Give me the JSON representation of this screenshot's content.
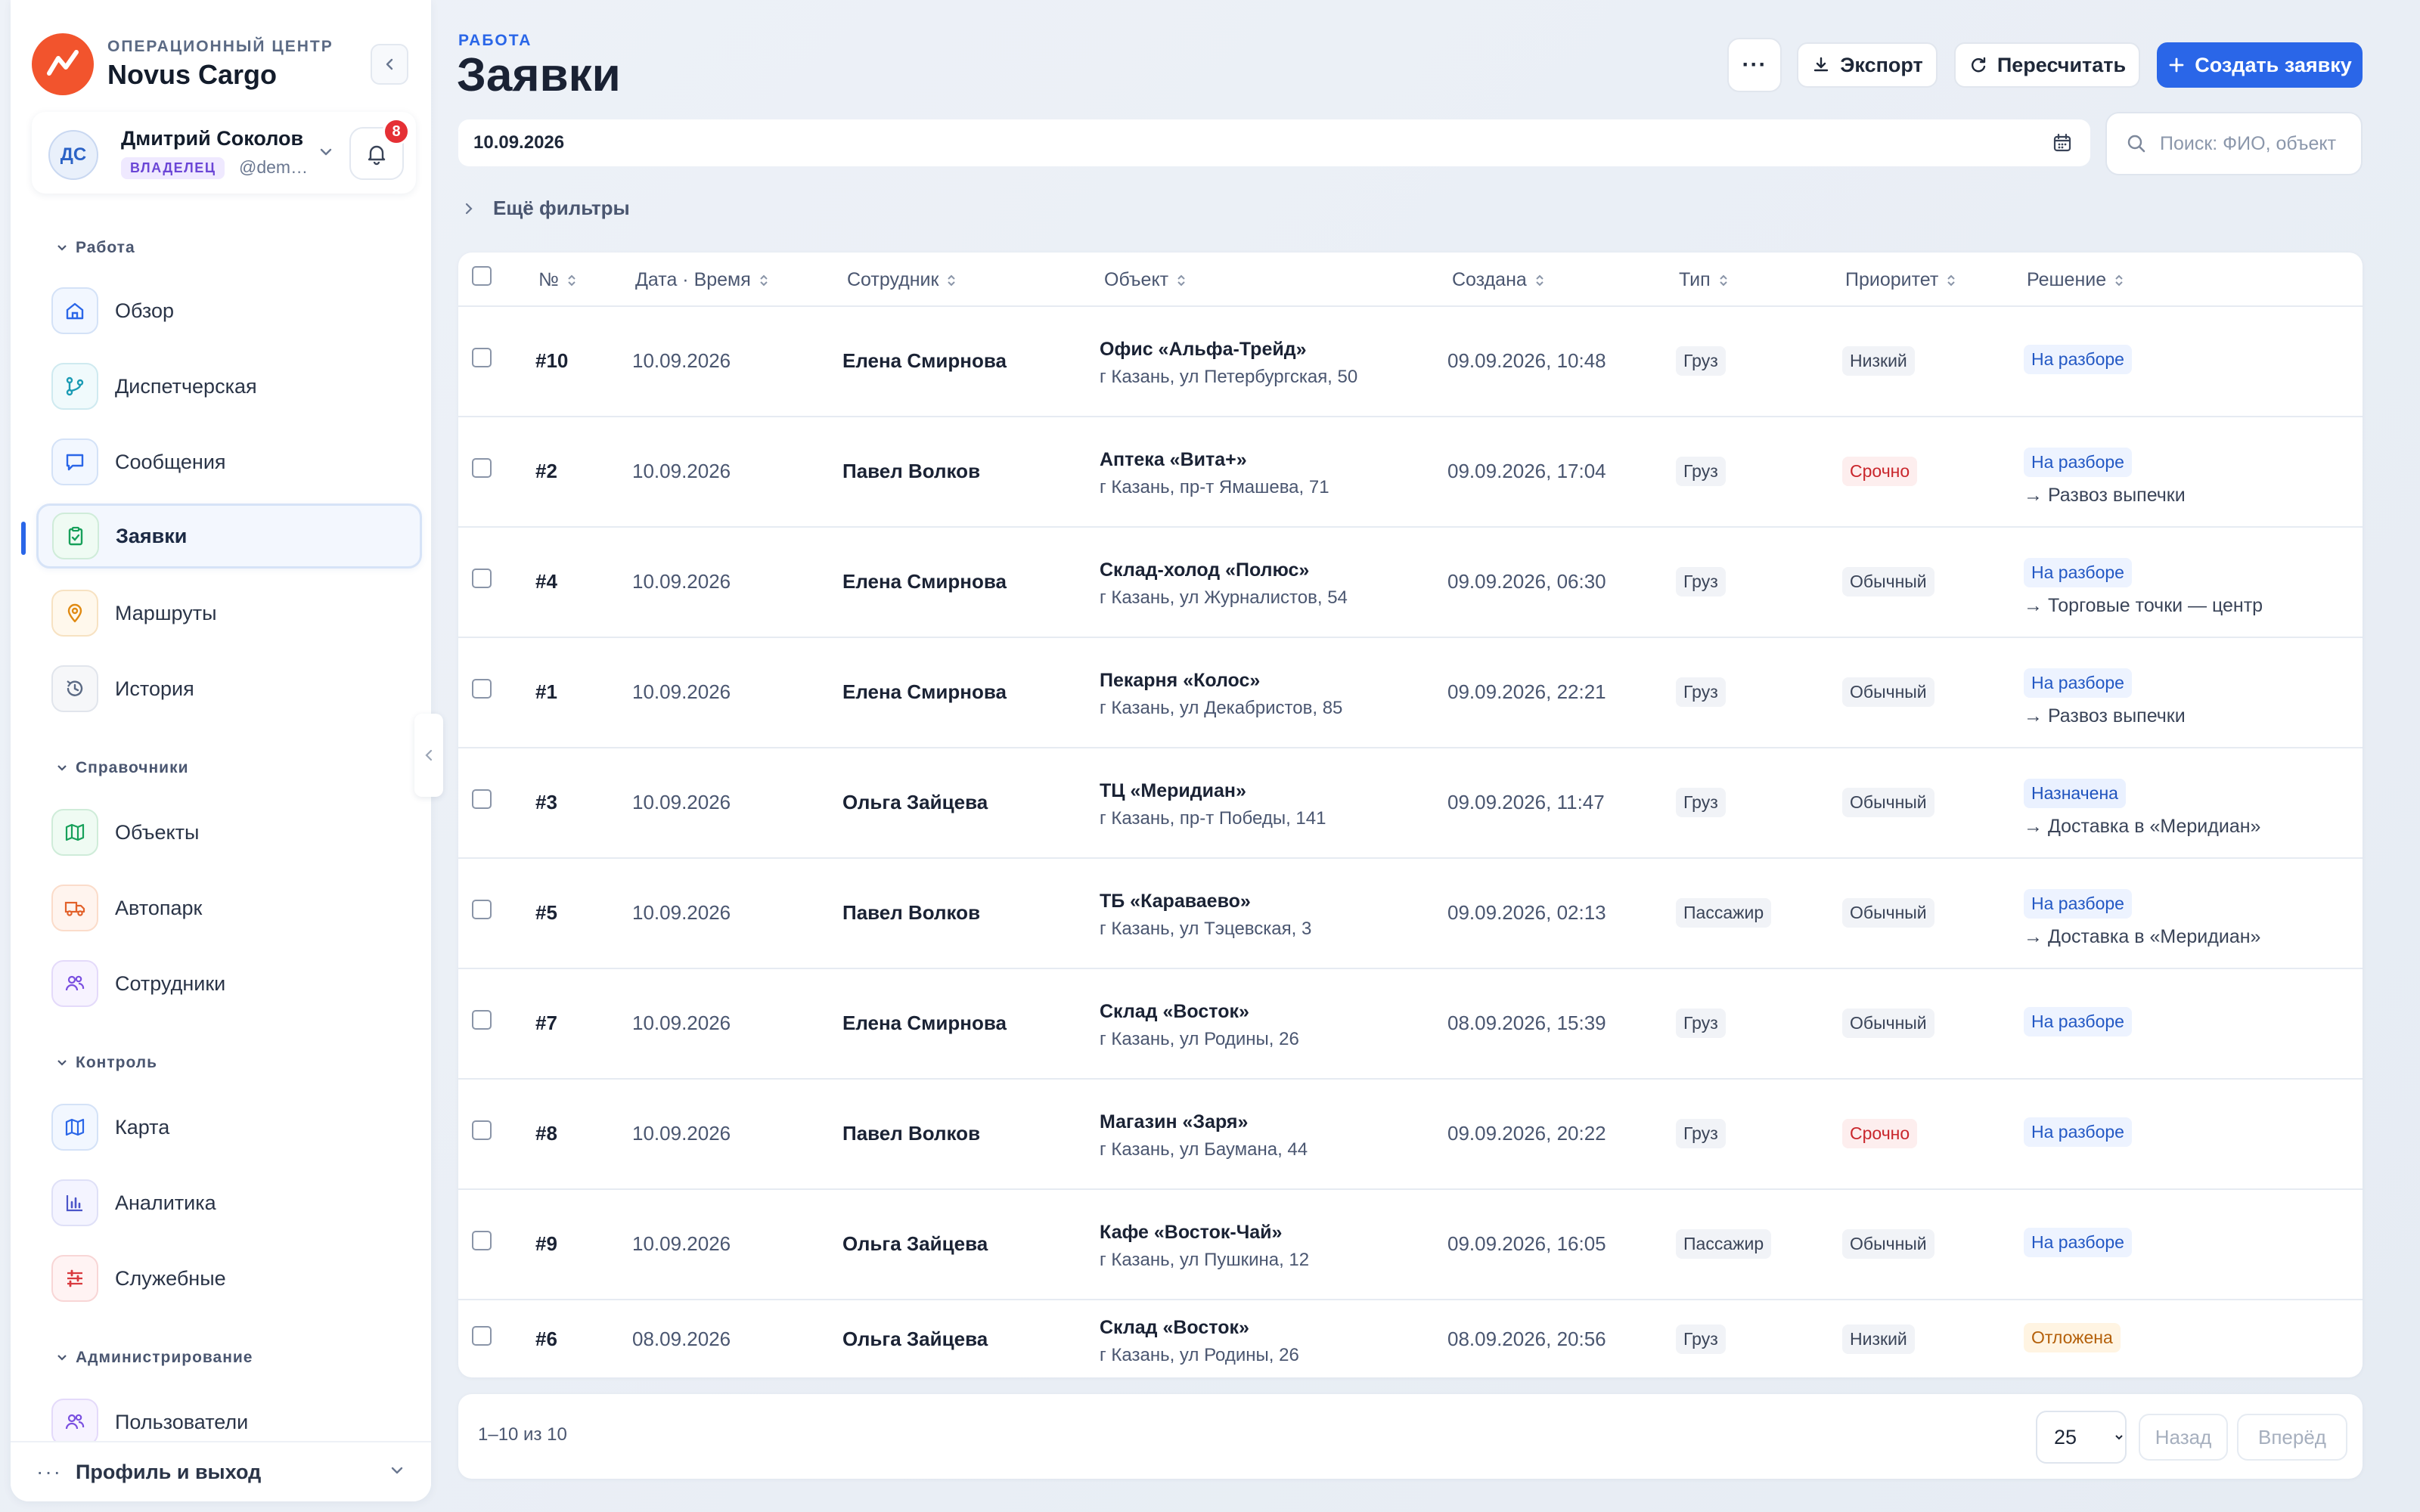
{
  "brand": {
    "subtitle": "ОПЕРАЦИОННЫЙ ЦЕНТР",
    "name": "Novus Cargo"
  },
  "user": {
    "initials": "ДС",
    "name": "Дмитрий Соколов",
    "role": "ВЛАДЕЛЕЦ",
    "handle": "@dem…",
    "notifications": "8"
  },
  "nav": {
    "sections": [
      {
        "title": "Работа",
        "items": [
          {
            "label": "Обзор",
            "icon": "home-icon"
          },
          {
            "label": "Диспетчерская",
            "icon": "branch-icon"
          },
          {
            "label": "Сообщения",
            "icon": "chat-icon"
          },
          {
            "label": "Заявки",
            "icon": "clipboard-icon"
          },
          {
            "label": "Маршруты",
            "icon": "pin-icon"
          },
          {
            "label": "История",
            "icon": "history-icon"
          }
        ]
      },
      {
        "title": "Справочники",
        "items": [
          {
            "label": "Объекты",
            "icon": "map-icon"
          },
          {
            "label": "Автопарк",
            "icon": "truck-icon"
          },
          {
            "label": "Сотрудники",
            "icon": "users-icon"
          }
        ]
      },
      {
        "title": "Контроль",
        "items": [
          {
            "label": "Карта",
            "icon": "map-icon"
          },
          {
            "label": "Аналитика",
            "icon": "chart-icon"
          },
          {
            "label": "Служебные",
            "icon": "sliders-icon"
          }
        ]
      },
      {
        "title": "Администрирование",
        "items": [
          {
            "label": "Пользователи",
            "icon": "users-icon"
          }
        ]
      }
    ],
    "profile_label": "Профиль и выход"
  },
  "header": {
    "eyebrow": "РАБОТА",
    "title": "Заявки",
    "more_label": "···",
    "export_label": "Экспорт",
    "recalc_label": "Пересчитать",
    "create_label": "Создать заявку"
  },
  "filters": {
    "date_value": "10.09.2026",
    "search_placeholder": "Поиск: ФИО, объект",
    "more_filters_label": "Ещё фильтры"
  },
  "table": {
    "columns": [
      "№",
      "Дата · Время",
      "Сотрудник",
      "Объект",
      "Создана",
      "Тип",
      "Приоритет",
      "Решение"
    ],
    "rows": [
      {
        "num": "#10",
        "date": "10.09.2026",
        "employee": "Елена Смирнова",
        "object": "Офис «Альфа-Трейд»",
        "address": "г Казань, ул Петербургская, 50",
        "created": "09.09.2026, 10:48",
        "type": "Груз",
        "priority": "Низкий",
        "priority_kind": "low",
        "decision": "На разборе",
        "decision_kind": "review",
        "decision_note": ""
      },
      {
        "num": "#2",
        "date": "10.09.2026",
        "employee": "Павел Волков",
        "object": "Аптека «Вита+»",
        "address": "г Казань, пр-т Ямашева, 71",
        "created": "09.09.2026, 17:04",
        "type": "Груз",
        "priority": "Срочно",
        "priority_kind": "urgent",
        "decision": "На разборе",
        "decision_kind": "review",
        "decision_note": "→ Развоз выпечки"
      },
      {
        "num": "#4",
        "date": "10.09.2026",
        "employee": "Елена Смирнова",
        "object": "Склад-холод «Полюс»",
        "address": "г Казань, ул Журналистов, 54",
        "created": "09.09.2026, 06:30",
        "type": "Груз",
        "priority": "Обычный",
        "priority_kind": "normal",
        "decision": "На разборе",
        "decision_kind": "review",
        "decision_note": "→ Торговые точки — центр"
      },
      {
        "num": "#1",
        "date": "10.09.2026",
        "employee": "Елена Смирнова",
        "object": "Пекарня «Колос»",
        "address": "г Казань, ул Декабристов, 85",
        "created": "09.09.2026, 22:21",
        "type": "Груз",
        "priority": "Обычный",
        "priority_kind": "normal",
        "decision": "На разборе",
        "decision_kind": "review",
        "decision_note": "→ Развоз выпечки"
      },
      {
        "num": "#3",
        "date": "10.09.2026",
        "employee": "Ольга Зайцева",
        "object": "ТЦ «Меридиан»",
        "address": "г Казань, пр-т Победы, 141",
        "created": "09.09.2026, 11:47",
        "type": "Груз",
        "priority": "Обычный",
        "priority_kind": "normal",
        "decision": "Назначена",
        "decision_kind": "assigned",
        "decision_note": "→ Доставка в «Меридиан»"
      },
      {
        "num": "#5",
        "date": "10.09.2026",
        "employee": "Павел Волков",
        "object": "ТБ «Караваево»",
        "address": "г Казань, ул Тэцевская, 3",
        "created": "09.09.2026, 02:13",
        "type": "Пассажир",
        "priority": "Обычный",
        "priority_kind": "normal",
        "decision": "На разборе",
        "decision_kind": "review",
        "decision_note": "→ Доставка в «Меридиан»"
      },
      {
        "num": "#7",
        "date": "10.09.2026",
        "employee": "Елена Смирнова",
        "object": "Склад «Восток»",
        "address": "г Казань, ул Родины, 26",
        "created": "08.09.2026, 15:39",
        "type": "Груз",
        "priority": "Обычный",
        "priority_kind": "normal",
        "decision": "На разборе",
        "decision_kind": "review",
        "decision_note": ""
      },
      {
        "num": "#8",
        "date": "10.09.2026",
        "employee": "Павел Волков",
        "object": "Магазин «Заря»",
        "address": "г Казань, ул Баумана, 44",
        "created": "09.09.2026, 20:22",
        "type": "Груз",
        "priority": "Срочно",
        "priority_kind": "urgent",
        "decision": "На разборе",
        "decision_kind": "review",
        "decision_note": ""
      },
      {
        "num": "#9",
        "date": "10.09.2026",
        "employee": "Ольга Зайцева",
        "object": "Кафе «Восток-Чай»",
        "address": "г Казань, ул Пушкина, 12",
        "created": "09.09.2026, 16:05",
        "type": "Пассажир",
        "priority": "Обычный",
        "priority_kind": "normal",
        "decision": "На разборе",
        "decision_kind": "review",
        "decision_note": ""
      },
      {
        "num": "#6",
        "date": "08.09.2026",
        "employee": "Ольга Зайцева",
        "object": "Склад «Восток»",
        "address": "г Казань, ул Родины, 26",
        "created": "08.09.2026, 20:56",
        "type": "Груз",
        "priority": "Низкий",
        "priority_kind": "low",
        "decision": "Отложена",
        "decision_kind": "postponed",
        "decision_note": ""
      }
    ]
  },
  "pagination": {
    "info": "1–10 из 10",
    "page_size": "25",
    "page_size_options": [
      "25"
    ],
    "prev_label": "Назад",
    "next_label": "Вперёд"
  },
  "colors": {
    "accent": "#2a66e8",
    "brand": "#f2542d",
    "urgent": "#c9262c",
    "badge": "#e53035"
  }
}
